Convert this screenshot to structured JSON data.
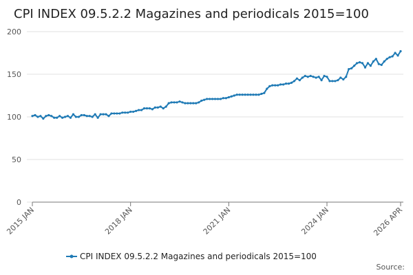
{
  "chart_data": {
    "type": "line",
    "title": "CPI INDEX 09.5.2.2 Magazines and periodicals 2015=100",
    "source": "Source:",
    "categories": [
      "2015 JAN",
      null,
      null,
      null,
      null,
      null,
      null,
      null,
      null,
      null,
      null,
      null,
      null,
      null,
      null,
      null,
      null,
      null,
      null,
      null,
      null,
      null,
      null,
      null,
      null,
      null,
      null,
      null,
      null,
      null,
      null,
      null,
      null,
      null,
      null,
      null,
      "2018 JAN",
      null,
      null,
      null,
      null,
      null,
      null,
      null,
      null,
      null,
      null,
      null,
      null,
      null,
      null,
      null,
      null,
      null,
      null,
      null,
      null,
      null,
      null,
      null,
      null,
      null,
      null,
      null,
      null,
      null,
      null,
      null,
      null,
      null,
      null,
      null,
      "2021 JAN",
      null,
      null,
      null,
      null,
      null,
      null,
      null,
      null,
      null,
      null,
      null,
      null,
      null,
      null,
      null,
      null,
      null,
      null,
      null,
      null,
      null,
      null,
      null,
      null,
      null,
      null,
      null,
      null,
      null,
      null,
      null,
      null,
      null,
      null,
      null,
      "2024 JAN",
      null,
      null,
      null,
      null,
      null,
      null,
      null,
      null,
      null,
      null,
      null,
      null,
      null,
      null,
      null,
      null,
      null,
      null,
      null,
      null,
      null,
      null,
      null,
      null,
      null,
      null,
      "2026 APR"
    ],
    "series": [
      {
        "name": "CPI INDEX 09.5.2.2 Magazines and periodicals 2015=100",
        "color": "#1f7ab5",
        "values": [
          101,
          102,
          100,
          101,
          98,
          101,
          102,
          101,
          99,
          99,
          101,
          99,
          100,
          101,
          99,
          103,
          100,
          100,
          102,
          102,
          101,
          101,
          100,
          103,
          99,
          103,
          103,
          103,
          101,
          104,
          104,
          104,
          104,
          105,
          105,
          105,
          106,
          106,
          107,
          108,
          108,
          110,
          110,
          110,
          109,
          111,
          111,
          112,
          110,
          112,
          116,
          117,
          117,
          117,
          118,
          117,
          116,
          116,
          116,
          116,
          116,
          117,
          119,
          120,
          121,
          121,
          121,
          121,
          121,
          121,
          122,
          122,
          123,
          124,
          125,
          126,
          126,
          126,
          126,
          126,
          126,
          126,
          126,
          126,
          127,
          128,
          133,
          136,
          137,
          137,
          137,
          138,
          138,
          139,
          139,
          140,
          142,
          145,
          143,
          146,
          148,
          147,
          148,
          147,
          146,
          147,
          143,
          148,
          147,
          142,
          142,
          142,
          143,
          146,
          144,
          147,
          156,
          157,
          160,
          163,
          164,
          163,
          158,
          163,
          160,
          165,
          168,
          162,
          161,
          165,
          168,
          170,
          171,
          175,
          172,
          177
        ]
      }
    ],
    "ylim": [
      0,
      200
    ],
    "yticks": [
      0,
      50,
      100,
      150,
      200
    ],
    "grid": true
  }
}
